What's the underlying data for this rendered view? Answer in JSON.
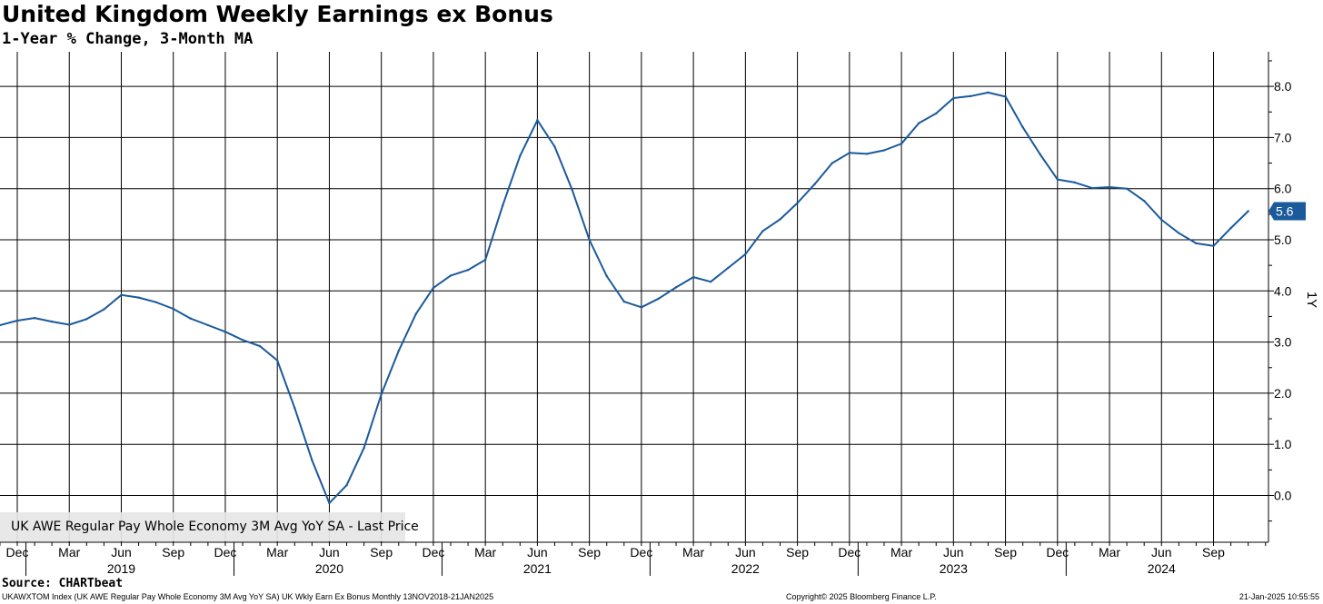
{
  "header": {
    "title": "United Kingdom Weekly Earnings ex Bonus",
    "subtitle": "1-Year % Change, 3-Month MA"
  },
  "footer": {
    "source": "Source: CHARTbeat",
    "ticker": "UKAWXTOM Index (UK AWE Regular Pay Whole Economy 3M Avg YoY SA) UK Wkly Earn Ex Bonus  Monthly 13NOV2018-21JAN2025",
    "copyright": "Copyright© 2025 Bloomberg Finance L.P.",
    "timestamp": "21-Jan-2025 10:55:55"
  },
  "colors": {
    "series": "#1b5a9b",
    "grid": "#000000",
    "legend_bg": "#e6e6e6"
  },
  "chart_data": {
    "type": "line",
    "title": "United Kingdom Weekly Earnings ex Bonus",
    "subtitle": "1-Year % Change, 3-Month MA",
    "ylabel": "1Y",
    "ylim": [
      -1.0,
      8.7
    ],
    "yticks": [
      0.0,
      1.0,
      2.0,
      3.0,
      4.0,
      5.0,
      6.0,
      7.0,
      8.0
    ],
    "ytick_labels": [
      "0.0",
      "1.0",
      "2.0",
      "3.0",
      "4.0",
      "5.0",
      "6.0",
      "7.0",
      "8.0"
    ],
    "grid": true,
    "legend_position": "bottom-left",
    "x_start": "2018-11",
    "x_end": "2025-02",
    "month_ticks": [
      {
        "date": "2018-12",
        "label": "Dec"
      },
      {
        "date": "2019-03",
        "label": "Mar"
      },
      {
        "date": "2019-06",
        "label": "Jun"
      },
      {
        "date": "2019-09",
        "label": "Sep"
      },
      {
        "date": "2019-12",
        "label": "Dec"
      },
      {
        "date": "2020-03",
        "label": "Mar"
      },
      {
        "date": "2020-06",
        "label": "Jun"
      },
      {
        "date": "2020-09",
        "label": "Sep"
      },
      {
        "date": "2020-12",
        "label": "Dec"
      },
      {
        "date": "2021-03",
        "label": "Mar"
      },
      {
        "date": "2021-06",
        "label": "Jun"
      },
      {
        "date": "2021-09",
        "label": "Sep"
      },
      {
        "date": "2021-12",
        "label": "Dec"
      },
      {
        "date": "2022-03",
        "label": "Mar"
      },
      {
        "date": "2022-06",
        "label": "Jun"
      },
      {
        "date": "2022-09",
        "label": "Sep"
      },
      {
        "date": "2022-12",
        "label": "Dec"
      },
      {
        "date": "2023-03",
        "label": "Mar"
      },
      {
        "date": "2023-06",
        "label": "Jun"
      },
      {
        "date": "2023-09",
        "label": "Sep"
      },
      {
        "date": "2023-12",
        "label": "Dec"
      },
      {
        "date": "2024-03",
        "label": "Mar"
      },
      {
        "date": "2024-06",
        "label": "Jun"
      },
      {
        "date": "2024-09",
        "label": "Sep"
      }
    ],
    "year_labels": [
      {
        "date": "2019-06",
        "label": "2019"
      },
      {
        "date": "2020-06",
        "label": "2020"
      },
      {
        "date": "2021-06",
        "label": "2021"
      },
      {
        "date": "2022-06",
        "label": "2022"
      },
      {
        "date": "2023-06",
        "label": "2023"
      },
      {
        "date": "2024-06",
        "label": "2024"
      }
    ],
    "year_boundaries": [
      "2019-01",
      "2020-01",
      "2021-01",
      "2022-01",
      "2023-01",
      "2024-01",
      "2025-01"
    ],
    "last_value_label": "5.6",
    "series": [
      {
        "name": "UK AWE Regular Pay Whole Economy 3M Avg YoY SA - Last Price",
        "points": [
          {
            "x": "2018-11",
            "y": 3.33
          },
          {
            "x": "2018-12",
            "y": 3.42
          },
          {
            "x": "2019-01",
            "y": 3.47
          },
          {
            "x": "2019-02",
            "y": 3.4
          },
          {
            "x": "2019-03",
            "y": 3.34
          },
          {
            "x": "2019-04",
            "y": 3.45
          },
          {
            "x": "2019-05",
            "y": 3.64
          },
          {
            "x": "2019-06",
            "y": 3.92
          },
          {
            "x": "2019-07",
            "y": 3.87
          },
          {
            "x": "2019-08",
            "y": 3.78
          },
          {
            "x": "2019-09",
            "y": 3.65
          },
          {
            "x": "2019-10",
            "y": 3.46
          },
          {
            "x": "2019-11",
            "y": 3.33
          },
          {
            "x": "2019-12",
            "y": 3.2
          },
          {
            "x": "2020-01",
            "y": 3.04
          },
          {
            "x": "2020-02",
            "y": 2.92
          },
          {
            "x": "2020-03",
            "y": 2.64
          },
          {
            "x": "2020-04",
            "y": 1.71
          },
          {
            "x": "2020-05",
            "y": 0.69
          },
          {
            "x": "2020-06",
            "y": -0.15
          },
          {
            "x": "2020-07",
            "y": 0.2
          },
          {
            "x": "2020-08",
            "y": 0.93
          },
          {
            "x": "2020-09",
            "y": 1.98
          },
          {
            "x": "2020-10",
            "y": 2.83
          },
          {
            "x": "2020-11",
            "y": 3.55
          },
          {
            "x": "2020-12",
            "y": 4.06
          },
          {
            "x": "2021-01",
            "y": 4.3
          },
          {
            "x": "2021-02",
            "y": 4.41
          },
          {
            "x": "2021-03",
            "y": 4.61
          },
          {
            "x": "2021-04",
            "y": 5.67
          },
          {
            "x": "2021-05",
            "y": 6.64
          },
          {
            "x": "2021-06",
            "y": 7.34
          },
          {
            "x": "2021-07",
            "y": 6.82
          },
          {
            "x": "2021-08",
            "y": 5.98
          },
          {
            "x": "2021-09",
            "y": 5.0
          },
          {
            "x": "2021-10",
            "y": 4.29
          },
          {
            "x": "2021-11",
            "y": 3.79
          },
          {
            "x": "2021-12",
            "y": 3.68
          },
          {
            "x": "2022-01",
            "y": 3.85
          },
          {
            "x": "2022-02",
            "y": 4.07
          },
          {
            "x": "2022-03",
            "y": 4.27
          },
          {
            "x": "2022-04",
            "y": 4.18
          },
          {
            "x": "2022-05",
            "y": 4.45
          },
          {
            "x": "2022-06",
            "y": 4.72
          },
          {
            "x": "2022-07",
            "y": 5.17
          },
          {
            "x": "2022-08",
            "y": 5.4
          },
          {
            "x": "2022-09",
            "y": 5.72
          },
          {
            "x": "2022-10",
            "y": 6.09
          },
          {
            "x": "2022-11",
            "y": 6.5
          },
          {
            "x": "2022-12",
            "y": 6.7
          },
          {
            "x": "2023-01",
            "y": 6.68
          },
          {
            "x": "2023-02",
            "y": 6.75
          },
          {
            "x": "2023-03",
            "y": 6.88
          },
          {
            "x": "2023-04",
            "y": 7.28
          },
          {
            "x": "2023-05",
            "y": 7.47
          },
          {
            "x": "2023-06",
            "y": 7.77
          },
          {
            "x": "2023-07",
            "y": 7.81
          },
          {
            "x": "2023-08",
            "y": 7.88
          },
          {
            "x": "2023-09",
            "y": 7.8
          },
          {
            "x": "2023-10",
            "y": 7.2
          },
          {
            "x": "2023-11",
            "y": 6.67
          },
          {
            "x": "2023-12",
            "y": 6.18
          },
          {
            "x": "2024-01",
            "y": 6.12
          },
          {
            "x": "2024-02",
            "y": 6.01
          },
          {
            "x": "2024-03",
            "y": 6.03
          },
          {
            "x": "2024-04",
            "y": 6.0
          },
          {
            "x": "2024-05",
            "y": 5.76
          },
          {
            "x": "2024-06",
            "y": 5.39
          },
          {
            "x": "2024-07",
            "y": 5.13
          },
          {
            "x": "2024-08",
            "y": 4.93
          },
          {
            "x": "2024-09",
            "y": 4.88
          },
          {
            "x": "2024-10",
            "y": 5.23
          },
          {
            "x": "2024-11",
            "y": 5.56
          }
        ]
      }
    ]
  }
}
